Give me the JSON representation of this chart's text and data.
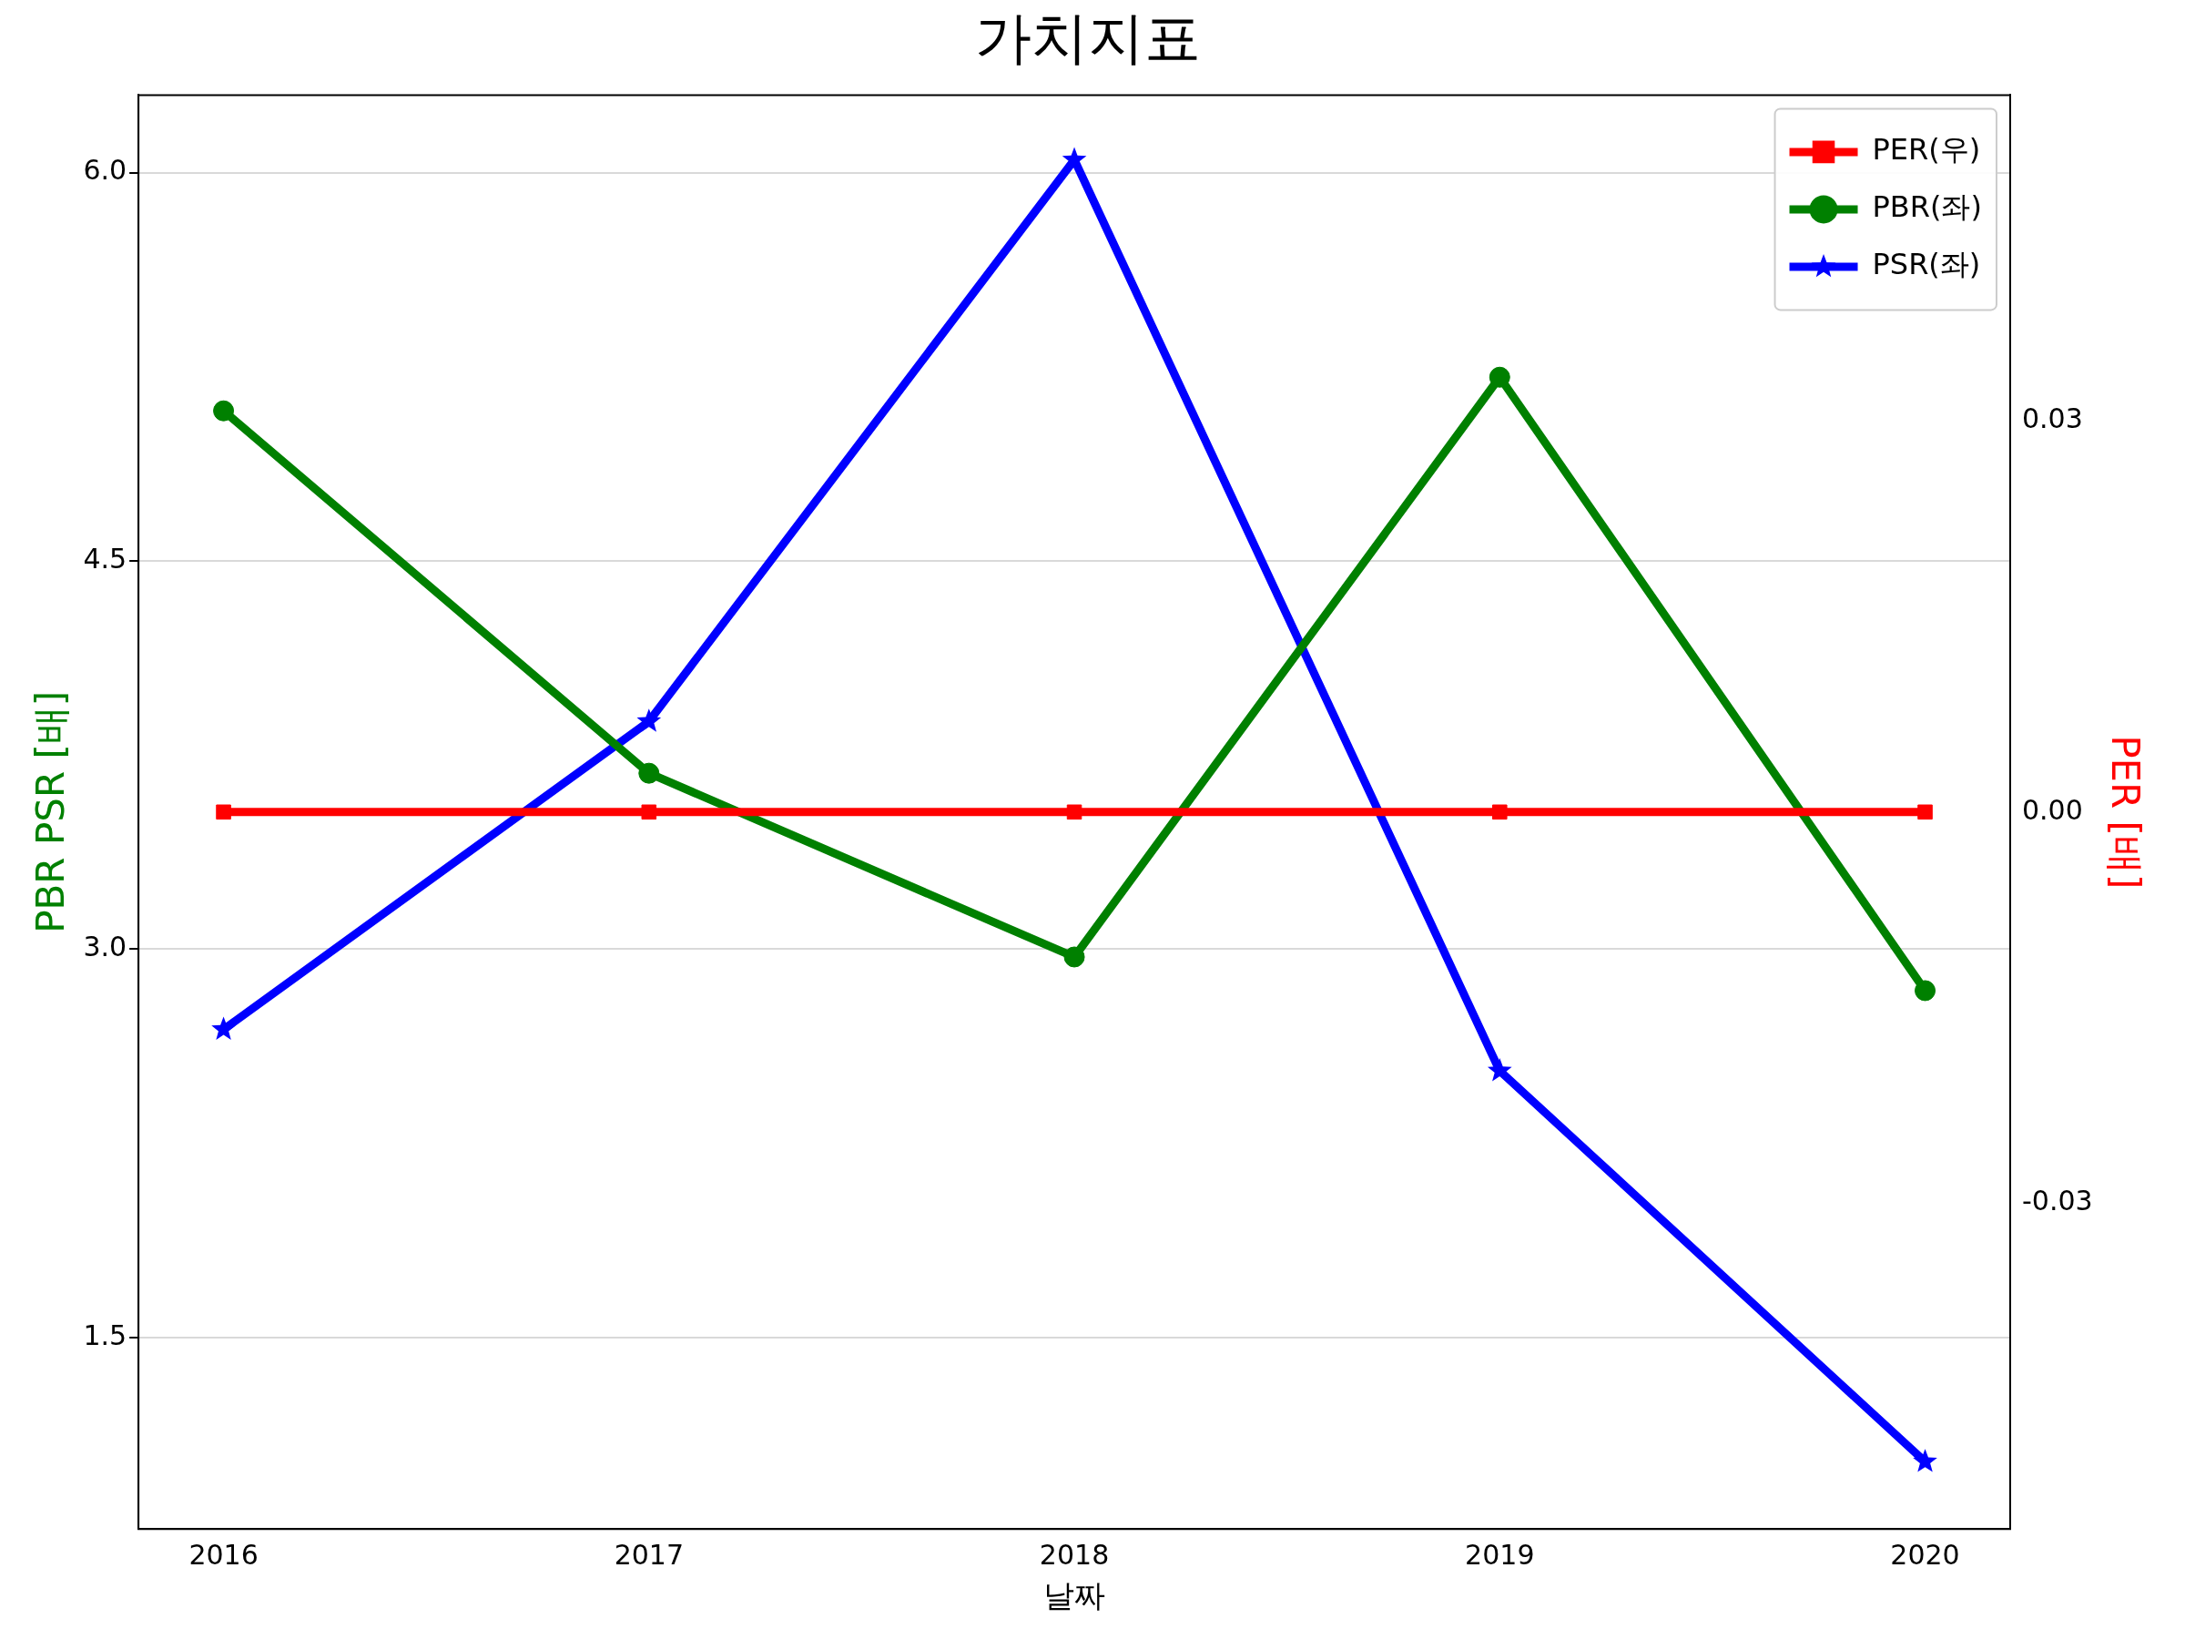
{
  "chart_data": {
    "type": "line",
    "title": "가치지표",
    "xlabel": "날짜",
    "ylabel": "PBR PSR [배]",
    "y2label": "PER [배]",
    "x": [
      2016,
      2017,
      2018,
      2019,
      2020
    ],
    "xlim": [
      2015.8,
      2020.2
    ],
    "xticks": [
      2016,
      2017,
      2018,
      2019,
      2020
    ],
    "ylim": [
      0.76,
      6.3
    ],
    "yticks": [
      {
        "value": 1.5,
        "label": "1.5"
      },
      {
        "value": 3,
        "label": "3.0"
      },
      {
        "value": 4.5,
        "label": "4.5"
      },
      {
        "value": 6,
        "label": "6.0"
      }
    ],
    "y2lim": [
      -0.055,
      0.055
    ],
    "y2ticks": [
      {
        "value": -0.03,
        "label": "-0.03"
      },
      {
        "value": 0,
        "label": "0.00"
      },
      {
        "value": 0.03,
        "label": "0.03"
      }
    ],
    "grid": "y",
    "legend": "top right",
    "line_style": "solid",
    "series": [
      {
        "name": "PER(우)",
        "color": "#ff0000",
        "axis": "y2",
        "marker": "square",
        "values": [
          0,
          0,
          0,
          0,
          0
        ]
      },
      {
        "name": "PBR(좌)",
        "color": "#008000",
        "axis": "y",
        "marker": "circle",
        "values": [
          5.08,
          3.68,
          2.97,
          5.21,
          2.84
        ]
      },
      {
        "name": "PSR(좌)",
        "color": "#0000ff",
        "axis": "y",
        "marker": "star",
        "values": [
          2.69,
          3.88,
          6.05,
          2.53,
          1.02
        ]
      }
    ]
  }
}
